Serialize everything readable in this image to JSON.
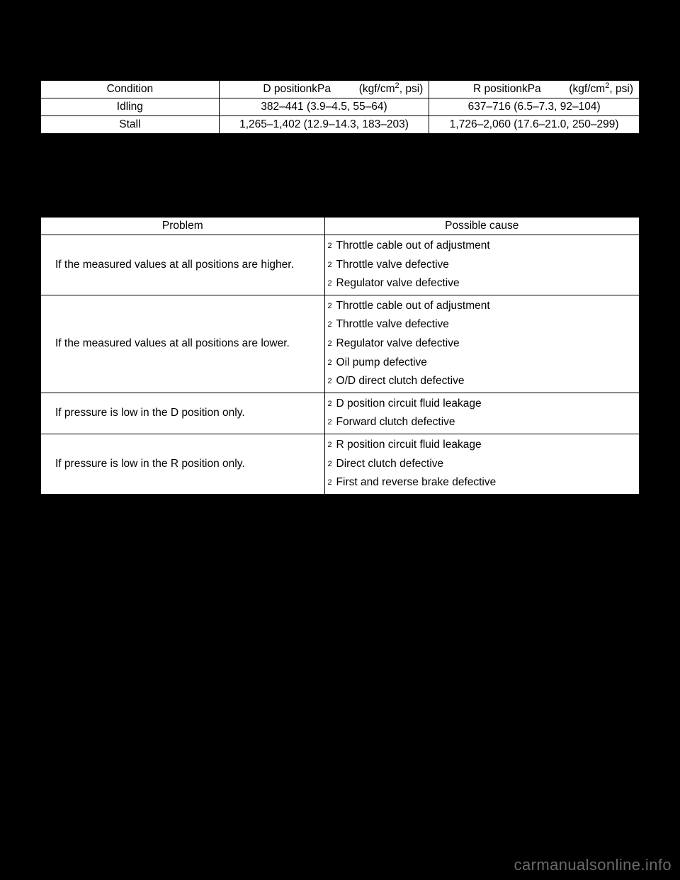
{
  "colors": {
    "page_bg": "#000000",
    "table_bg": "#ffffff",
    "border": "#000000",
    "text": "#000000",
    "watermark": "#6a6a6a"
  },
  "typography": {
    "body_font": "Arial, Helvetica, sans-serif",
    "body_size_pt": 12,
    "watermark_size_pt": 17
  },
  "bullet_glyph": "2",
  "table1": {
    "type": "table",
    "column_widths_pct": [
      29.8,
      35.1,
      35.1
    ],
    "headers": {
      "condition": "Condition",
      "d_label": "D position",
      "d_unit_mid": "kPa",
      "d_unit_right": "(kgf/cm",
      "d_unit_sup": "2",
      "d_unit_tail": ", psi)",
      "r_label": "R position",
      "r_unit_mid": "kPa",
      "r_unit_right": "(kgf/cm",
      "r_unit_sup": "2",
      "r_unit_tail": ", psi)"
    },
    "rows": [
      {
        "condition": "Idling",
        "d": "382–441 (3.9–4.5, 55–64)",
        "r": "637–716 (6.5–7.3, 92–104)"
      },
      {
        "condition": "Stall",
        "d": "1,265–1,402 (12.9–14.3, 183–203)",
        "r": "1,726–2,060 (17.6–21.0, 250–299)"
      }
    ]
  },
  "table2": {
    "type": "table",
    "column_widths_pct": [
      47.4,
      52.6
    ],
    "headers": {
      "problem": "Problem",
      "cause": "Possible cause"
    },
    "rows": [
      {
        "problem": "If the measured values at all positions are higher.",
        "causes": [
          "Throttle cable out of adjustment",
          "Throttle valve defective",
          "Regulator valve defective"
        ]
      },
      {
        "problem": "If the measured values at all positions are lower.",
        "causes": [
          "Throttle cable out of adjustment",
          "Throttle valve defective",
          "Regulator valve defective",
          "Oil pump defective",
          "O/D direct clutch defective"
        ]
      },
      {
        "problem": "If pressure is low in the D position only.",
        "causes": [
          "D position circuit fluid leakage",
          "Forward clutch defective"
        ]
      },
      {
        "problem": "If pressure is low in the R position only.",
        "causes": [
          "R position circuit fluid leakage",
          "Direct clutch defective",
          "First and reverse brake defective"
        ]
      }
    ]
  },
  "watermark": "carmanualsonline.info"
}
